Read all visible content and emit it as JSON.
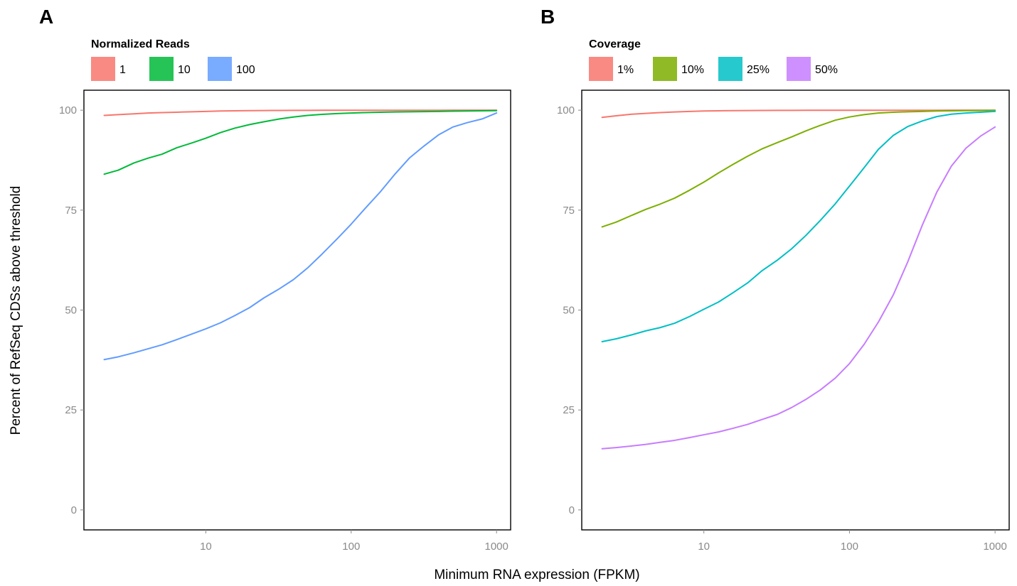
{
  "axis_titles": {
    "x": "Minimum RNA expression (FPKM)",
    "y": "Percent of RefSeq CDSs above threshold"
  },
  "chart_data": [
    {
      "type": "line",
      "panel_label": "A",
      "legend": {
        "title": "Normalized Reads",
        "position": "top-left"
      },
      "x_scale": "log10",
      "xlim": [
        1.45,
        1250
      ],
      "ylim": [
        -5,
        105
      ],
      "x_ticks": [
        10,
        100,
        1000
      ],
      "x_tick_labels": [
        "10",
        "100",
        "1000"
      ],
      "y_ticks": [
        0,
        25,
        50,
        75,
        100
      ],
      "y_tick_labels": [
        "0",
        "25",
        "50",
        "75",
        "100"
      ],
      "grid": false,
      "x": [
        2,
        2.5,
        3.2,
        4,
        5,
        6.3,
        8,
        10,
        12.6,
        15.8,
        20,
        25,
        32,
        40,
        50,
        63,
        80,
        100,
        126,
        158,
        200,
        251,
        316,
        398,
        501,
        631,
        794,
        1000
      ],
      "series": [
        {
          "name": "1",
          "color": "#F8766D",
          "values": [
            98.7,
            98.9,
            99.1,
            99.3,
            99.4,
            99.5,
            99.6,
            99.7,
            99.8,
            99.85,
            99.9,
            99.92,
            99.94,
            99.95,
            99.96,
            99.97,
            99.97,
            99.98,
            99.98,
            99.99,
            99.99,
            99.99,
            99.99,
            99.99,
            100,
            100,
            100,
            100
          ]
        },
        {
          "name": "10",
          "color": "#00BA38",
          "values": [
            84,
            85,
            86.8,
            88,
            89,
            90.6,
            91.8,
            93,
            94.4,
            95.5,
            96.4,
            97.1,
            97.8,
            98.3,
            98.7,
            98.95,
            99.15,
            99.3,
            99.4,
            99.5,
            99.55,
            99.6,
            99.65,
            99.7,
            99.75,
            99.8,
            99.85,
            99.9
          ]
        },
        {
          "name": "100",
          "color": "#619CFF",
          "values": [
            37.6,
            38.3,
            39.3,
            40.3,
            41.3,
            42.6,
            44,
            45.3,
            46.8,
            48.6,
            50.6,
            53,
            55.3,
            57.6,
            60.5,
            64,
            67.8,
            71.5,
            75.6,
            79.5,
            84,
            88,
            91,
            93.8,
            95.8,
            96.9,
            97.8,
            99.3
          ]
        }
      ]
    },
    {
      "type": "line",
      "panel_label": "B",
      "legend": {
        "title": "Coverage",
        "position": "top-left"
      },
      "x_scale": "log10",
      "xlim": [
        1.45,
        1250
      ],
      "ylim": [
        -5,
        105
      ],
      "x_ticks": [
        10,
        100,
        1000
      ],
      "x_tick_labels": [
        "10",
        "100",
        "1000"
      ],
      "y_ticks": [
        0,
        25,
        50,
        75,
        100
      ],
      "y_tick_labels": [
        "0",
        "25",
        "50",
        "75",
        "100"
      ],
      "grid": false,
      "x": [
        2,
        2.5,
        3.2,
        4,
        5,
        6.3,
        8,
        10,
        12.6,
        15.8,
        20,
        25,
        32,
        40,
        50,
        63,
        80,
        100,
        126,
        158,
        200,
        251,
        316,
        398,
        501,
        631,
        794,
        1000
      ],
      "series": [
        {
          "name": "1%",
          "color": "#F8766D",
          "values": [
            98.2,
            98.6,
            99,
            99.2,
            99.4,
            99.55,
            99.7,
            99.8,
            99.85,
            99.9,
            99.92,
            99.94,
            99.95,
            99.96,
            99.97,
            99.97,
            99.98,
            99.98,
            99.98,
            99.99,
            99.99,
            99.99,
            99.99,
            99.99,
            100,
            100,
            100,
            100
          ]
        },
        {
          "name": "10%",
          "color": "#7CAE00",
          "values": [
            70.8,
            72,
            73.7,
            75.2,
            76.5,
            78,
            80,
            82,
            84.3,
            86.4,
            88.5,
            90.3,
            91.9,
            93.3,
            94.8,
            96.2,
            97.5,
            98.3,
            98.9,
            99.3,
            99.5,
            99.6,
            99.7,
            99.8,
            99.85,
            99.9,
            99.92,
            99.95
          ]
        },
        {
          "name": "25%",
          "color": "#00BFC4",
          "values": [
            42.1,
            42.8,
            43.8,
            44.8,
            45.6,
            46.7,
            48.4,
            50.2,
            52,
            54.3,
            56.8,
            59.8,
            62.5,
            65.3,
            68.6,
            72.4,
            76.6,
            81,
            85.6,
            90.2,
            93.7,
            95.9,
            97.3,
            98.4,
            99,
            99.3,
            99.5,
            99.7
          ]
        },
        {
          "name": "50%",
          "color": "#C77CFF",
          "values": [
            15.3,
            15.6,
            16,
            16.4,
            16.9,
            17.4,
            18.1,
            18.8,
            19.5,
            20.4,
            21.4,
            22.6,
            23.9,
            25.6,
            27.6,
            30,
            33,
            36.6,
            41.4,
            47,
            53.8,
            62,
            71.2,
            79.5,
            86,
            90.5,
            93.5,
            95.8
          ]
        }
      ]
    }
  ]
}
